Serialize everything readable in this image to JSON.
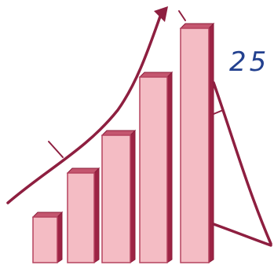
{
  "label": "25"
}
